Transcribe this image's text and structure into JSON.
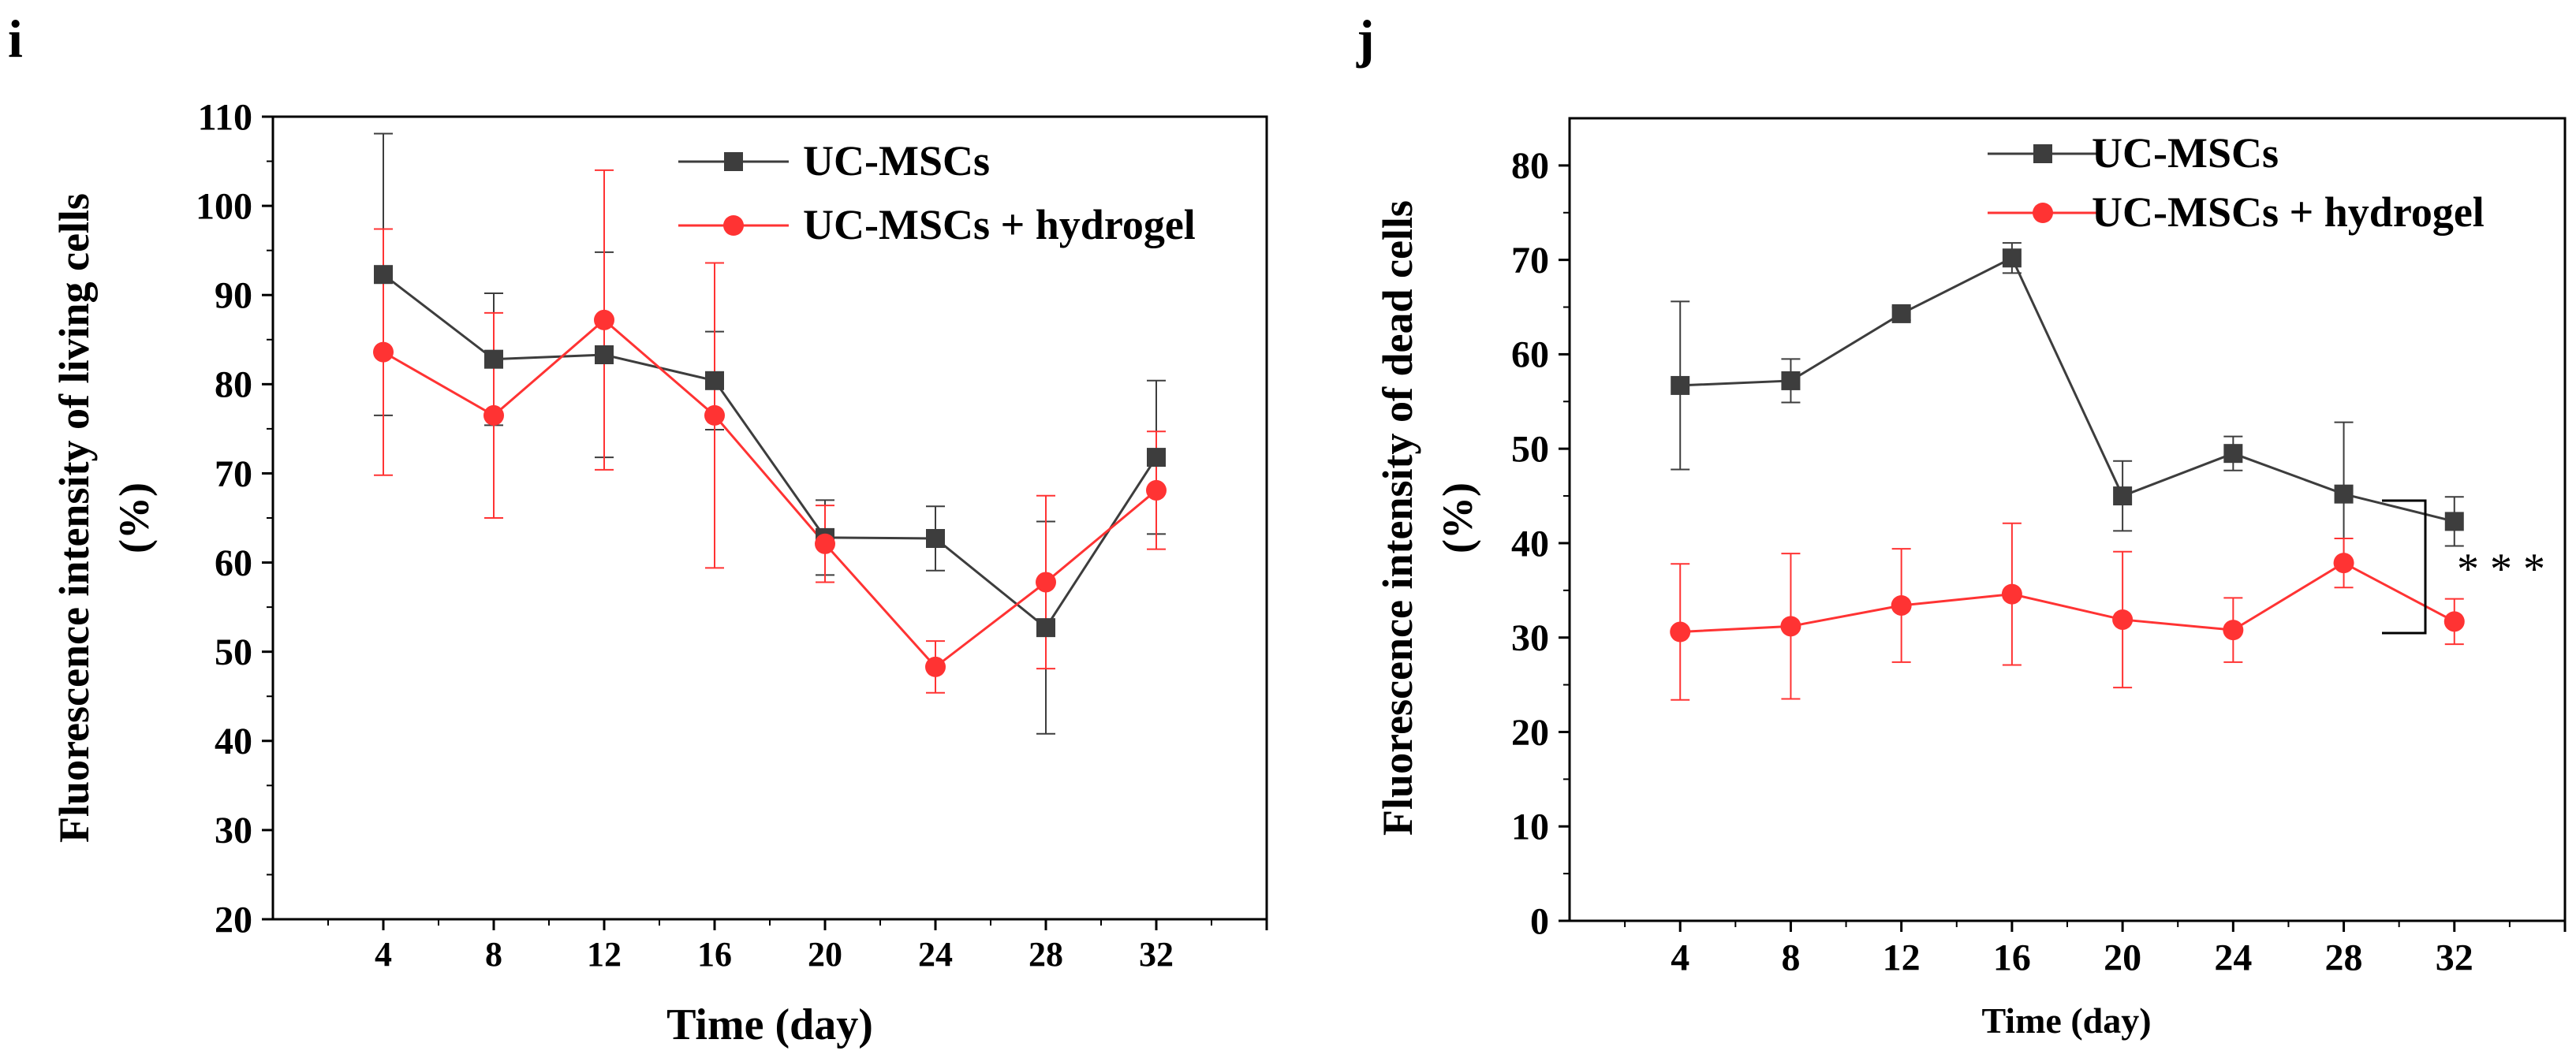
{
  "colors": {
    "series_a": "#3d3d3d",
    "series_b": "#ff3333",
    "axis": "#000000"
  },
  "chart_data": [
    {
      "panel_label": "i",
      "type": "line",
      "xlabel": "Time (day)",
      "ylabel_line1": "Fluorescence intensity of living cells",
      "ylabel_line2": "(%)",
      "xlim": [
        0,
        36
      ],
      "ylim": [
        20,
        110
      ],
      "x": [
        4,
        8,
        12,
        16,
        20,
        24,
        28,
        32
      ],
      "xticks": [
        4,
        8,
        12,
        16,
        20,
        24,
        28,
        32
      ],
      "yticks": [
        20,
        30,
        40,
        50,
        60,
        70,
        80,
        90,
        100,
        110
      ],
      "legend": [
        "UC-MSCs",
        "UC-MSCs + hydrogel"
      ],
      "legend_position": "top-right",
      "series": [
        {
          "name": "UC-MSCs",
          "marker": "square",
          "color": "#3d3d3d",
          "values": [
            92.3,
            82.8,
            83.3,
            80.4,
            62.8,
            62.7,
            52.7,
            71.8
          ],
          "errors": [
            15.8,
            7.4,
            11.5,
            5.5,
            4.2,
            3.6,
            11.9,
            8.6
          ]
        },
        {
          "name": "UC-MSCs + hydrogel",
          "marker": "circle",
          "color": "#ff3333",
          "values": [
            83.6,
            76.5,
            87.2,
            76.5,
            62.1,
            48.3,
            57.8,
            68.1
          ],
          "errors": [
            13.8,
            11.5,
            16.8,
            17.1,
            4.3,
            2.9,
            9.7,
            6.6
          ]
        }
      ]
    },
    {
      "panel_label": "j",
      "type": "line",
      "xlabel": "Time (day)",
      "ylabel_line1": "Fluorescence intensity of dead cells",
      "ylabel_line2": "(%)",
      "xlim": [
        0,
        36
      ],
      "ylim": [
        0,
        85
      ],
      "x": [
        4,
        8,
        12,
        16,
        20,
        24,
        28,
        32
      ],
      "xticks": [
        4,
        8,
        12,
        16,
        20,
        24,
        28,
        32
      ],
      "yticks": [
        0,
        10,
        20,
        30,
        40,
        50,
        60,
        70,
        80
      ],
      "legend": [
        "UC-MSCs",
        "UC-MSCs + hydrogel"
      ],
      "legend_position": "top-right",
      "significance": "* * *",
      "series": [
        {
          "name": "UC-MSCs",
          "marker": "square",
          "color": "#3d3d3d",
          "values": [
            56.7,
            57.2,
            64.3,
            70.2,
            45.0,
            49.5,
            45.2,
            42.3
          ],
          "errors": [
            8.9,
            2.3,
            0.7,
            1.6,
            3.7,
            1.8,
            7.6,
            2.6
          ]
        },
        {
          "name": "UC-MSCs + hydrogel",
          "marker": "circle",
          "color": "#ff3333",
          "values": [
            30.6,
            31.2,
            33.4,
            34.6,
            31.9,
            30.8,
            37.9,
            31.7
          ],
          "errors": [
            7.2,
            7.7,
            6.0,
            7.5,
            7.2,
            3.4,
            2.6,
            2.4
          ]
        }
      ]
    }
  ]
}
